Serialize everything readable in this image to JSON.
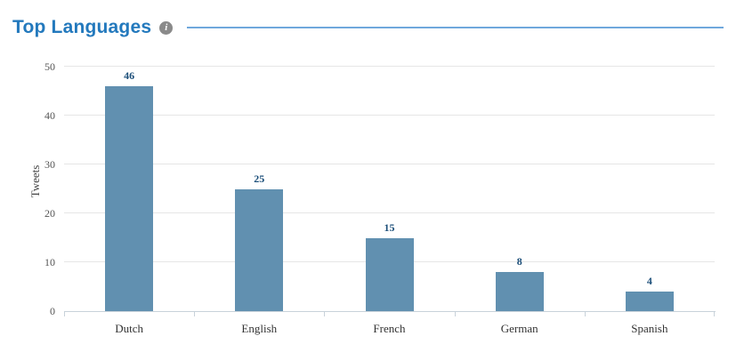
{
  "header": {
    "title": "Top Languages",
    "info_icon_glyph": "i"
  },
  "colors": {
    "title": "#2379bd",
    "divider": "#6fa8dc",
    "info_icon_bg": "#8a8a8a",
    "bar": "#6190b0",
    "value_label": "#1b4e79",
    "gridline": "#e6e6e6",
    "axis": "#c8d2da"
  },
  "chart_data": {
    "type": "bar",
    "title": "Top Languages",
    "categories": [
      "Dutch",
      "English",
      "French",
      "German",
      "Spanish"
    ],
    "values": [
      46,
      25,
      15,
      8,
      4
    ],
    "xlabel": "",
    "ylabel": "Tweets",
    "ylim": [
      0,
      50
    ],
    "yticks": [
      0,
      10,
      20,
      30,
      40,
      50
    ],
    "grid": true,
    "legend_position": "none",
    "bar_color": "#6190b0"
  }
}
